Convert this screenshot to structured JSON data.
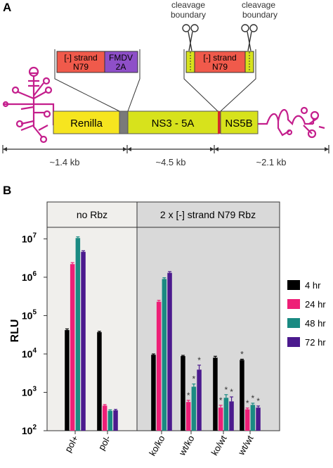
{
  "panel_a": {
    "label": "A",
    "segments": {
      "renilla": "Renilla",
      "ns3_5a": "NS3 - 5A",
      "ns5b": "NS5B"
    },
    "insert_left": {
      "line1": "[-] strand",
      "line2": "N79",
      "fmdv_line1": "FMDV",
      "fmdv_line2": "2A"
    },
    "insert_right": {
      "line1": "[-] strand",
      "line2": "N79"
    },
    "cleavage_left": {
      "line1": "cleavage",
      "line2": "boundary"
    },
    "cleavage_right": {
      "line1": "cleavage",
      "line2": "boundary"
    },
    "sizes": [
      "~1.4 kb",
      "~4.5 kb",
      "~2.1 kb"
    ],
    "colors": {
      "renilla": "#f6e51f",
      "ns": "#d7e21c",
      "insert_red": "#f05a4b",
      "fmdv": "#8e4fc8",
      "rna": "#c41e8c",
      "linker": "#7a7a7a"
    },
    "icons": [
      "scissors-icon",
      "rna-stemloop-icon"
    ]
  },
  "panel_b": {
    "label": "B"
  },
  "chart_data": {
    "type": "bar",
    "ylabel": "RLU",
    "log_scale": true,
    "ylim": [
      100,
      20000000
    ],
    "yticks": [
      {
        "base": "10",
        "exp": "2",
        "value": 100
      },
      {
        "base": "10",
        "exp": "3",
        "value": 1000
      },
      {
        "base": "10",
        "exp": "4",
        "value": 10000
      },
      {
        "base": "10",
        "exp": "5",
        "value": 100000
      },
      {
        "base": "10",
        "exp": "6",
        "value": 1000000
      },
      {
        "base": "10",
        "exp": "7",
        "value": 10000000
      }
    ],
    "groups": [
      {
        "label": "no Rbz",
        "categories": [
          0,
          1
        ]
      },
      {
        "label": "2 x [-] strand N79 Rbz",
        "categories": [
          2,
          3,
          4,
          5
        ]
      }
    ],
    "categories": [
      "pol+",
      "pol-",
      "ko/ko",
      "wt/ko",
      "ko/wt",
      "wt/wt"
    ],
    "series": [
      {
        "name": "4 hr",
        "color": "#000000",
        "values": [
          42000,
          37000,
          9500,
          8800,
          8000,
          7000
        ]
      },
      {
        "name": "24 hr",
        "color": "#ee1f77",
        "values": [
          2200000,
          450,
          230000,
          560,
          400,
          360
        ]
      },
      {
        "name": "48 hr",
        "color": "#1a8a82",
        "values": [
          10500000,
          330,
          900000,
          1400,
          720,
          470
        ]
      },
      {
        "name": "72 hr",
        "color": "#4b1a8e",
        "values": [
          4600000,
          340,
          1300000,
          3900,
          580,
          400
        ]
      }
    ],
    "errors": [
      [
        3000,
        2000,
        500,
        400,
        700,
        300
      ],
      [
        200000,
        30,
        20000,
        60,
        60,
        30
      ],
      [
        800000,
        20,
        70000,
        250,
        150,
        50
      ],
      [
        300000,
        20,
        100000,
        1200,
        180,
        40
      ]
    ],
    "significant": [
      [
        false,
        false,
        false,
        false,
        false,
        true
      ],
      [
        false,
        false,
        false,
        true,
        true,
        true
      ],
      [
        false,
        false,
        false,
        true,
        true,
        true
      ],
      [
        false,
        false,
        false,
        true,
        true,
        true
      ]
    ],
    "significance_marker": "*",
    "legend": "right"
  }
}
